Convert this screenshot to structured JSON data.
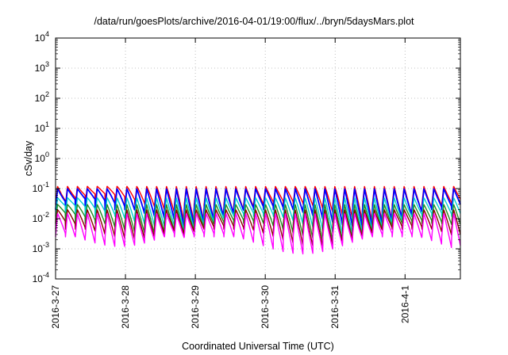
{
  "chart_data": {
    "type": "line",
    "title": "/data/run/goesPlots/archive/2016-04-01/19:00/flux/../bryn/5daysMars.plot",
    "xlabel": "Coordinated Universal Time (UTC)",
    "ylabel": "cSv/day",
    "yscale": "log",
    "ylim": [
      0.0001,
      10000
    ],
    "xlim": [
      "2016-03-27 00:00",
      "2016-04-01 19:00"
    ],
    "grid": true,
    "x_ticks": [
      "2016-3-27",
      "2016-3-28",
      "2016-3-29",
      "2016-3-30",
      "2016-3-31",
      "2016-4-1"
    ],
    "y_ticks": [
      {
        "base": "10",
        "exp": "-4"
      },
      {
        "base": "10",
        "exp": "-3"
      },
      {
        "base": "10",
        "exp": "-2"
      },
      {
        "base": "10",
        "exp": "-1"
      },
      {
        "base": "10",
        "exp": "0"
      },
      {
        "base": "10",
        "exp": "1"
      },
      {
        "base": "10",
        "exp": "2"
      },
      {
        "base": "10",
        "exp": "3"
      },
      {
        "base": "10",
        "exp": "4"
      }
    ],
    "oscillation_period_hours": 3.4,
    "series": [
      {
        "color": "#ff0000",
        "peak": 0.12,
        "trough": 0.03
      },
      {
        "color": "#0000ff",
        "peak": 0.1,
        "trough": 0.02
      },
      {
        "color": "#00ced1",
        "peak": 0.05,
        "trough": 0.012
      },
      {
        "color": "#228b22",
        "peak": 0.03,
        "trough": 0.007
      },
      {
        "color": "#8b0000",
        "peak": 0.02,
        "trough": 0.0045
      },
      {
        "color": "#ff00ff",
        "peak": 0.015,
        "trough": 0.0025
      }
    ]
  }
}
